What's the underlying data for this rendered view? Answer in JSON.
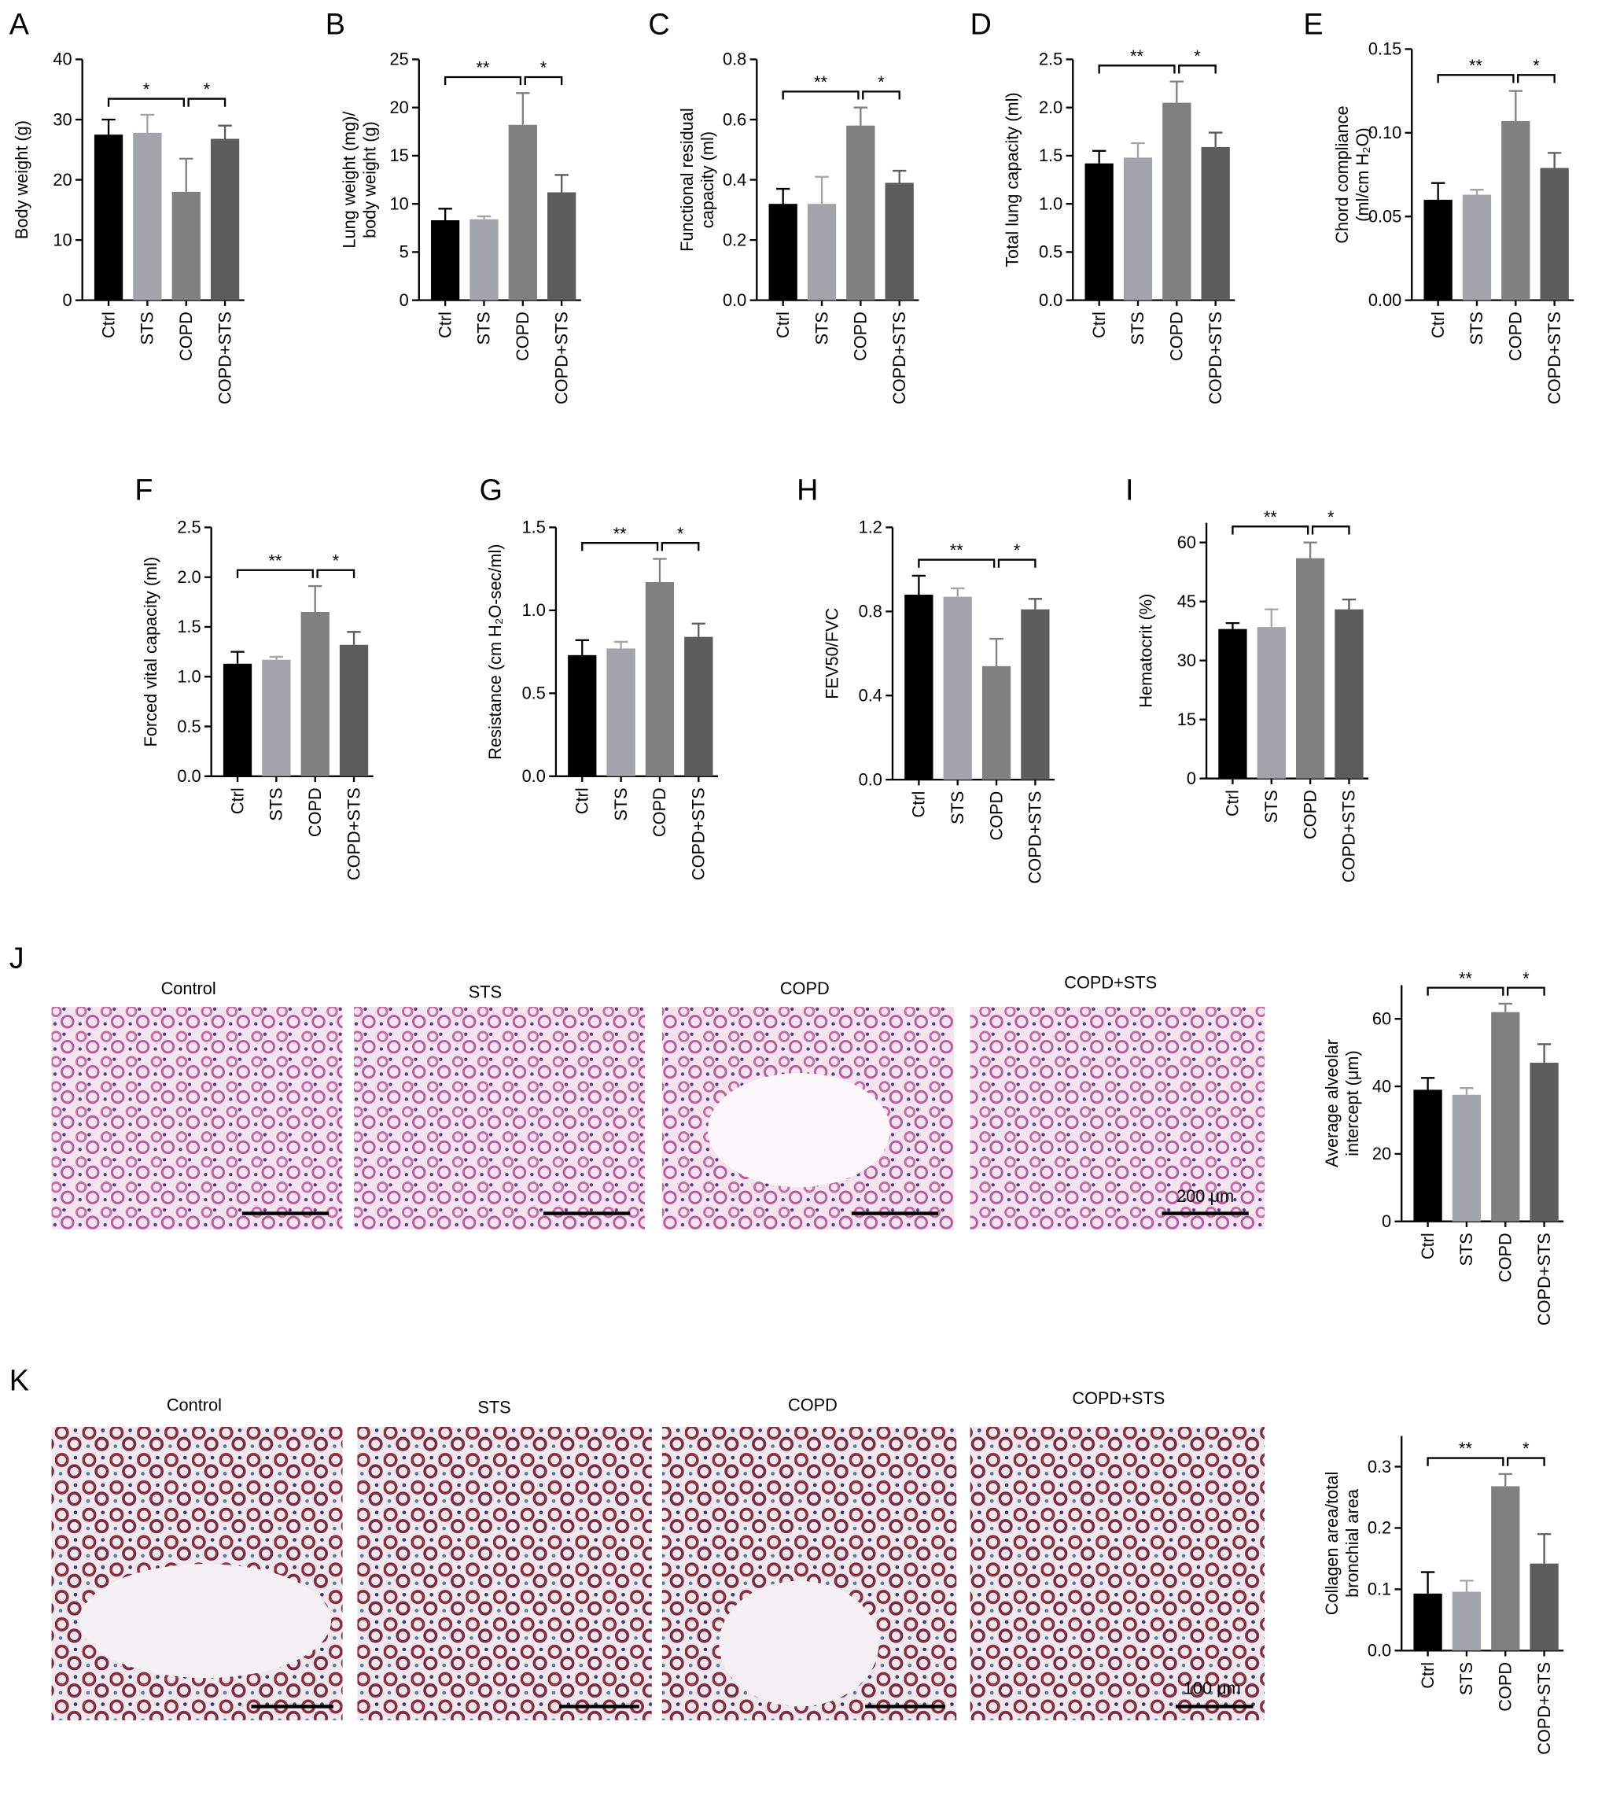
{
  "chart_data": [
    {
      "type": "bar",
      "panel": "A",
      "ylabel": "Body weight (g)",
      "categories": [
        "Ctrl",
        "STS",
        "COPD",
        "COPD+STS"
      ],
      "values": [
        27.5,
        27.8,
        18,
        26.8
      ],
      "errors": [
        2.5,
        3,
        5.5,
        2.2
      ],
      "colors": [
        "#000000",
        "#a3a3ab",
        "#808080",
        "#5c5c5c"
      ],
      "ylim": [
        0,
        40
      ],
      "yticks": [
        0,
        10,
        20,
        30,
        40
      ],
      "brackets": [
        {
          "label": "*",
          "span": [
            "Ctrl",
            "COPD"
          ]
        },
        {
          "label": "*",
          "span": [
            "COPD",
            "COPD+STS"
          ]
        }
      ]
    },
    {
      "type": "bar",
      "panel": "B",
      "ylabel": "Lung weight (mg)/ body weight (g)",
      "categories": [
        "Ctrl",
        "STS",
        "COPD",
        "COPD+STS"
      ],
      "values": [
        8.3,
        8.4,
        18.2,
        11.2
      ],
      "errors": [
        1.2,
        0.3,
        3.3,
        1.8
      ],
      "colors": [
        "#000000",
        "#a3a3ab",
        "#808080",
        "#5c5c5c"
      ],
      "ylim": [
        0,
        25
      ],
      "yticks": [
        0,
        5,
        10,
        15,
        20,
        25
      ],
      "brackets": [
        {
          "label": "**",
          "span": [
            "Ctrl",
            "COPD"
          ]
        },
        {
          "label": "*",
          "span": [
            "COPD",
            "COPD+STS"
          ]
        }
      ]
    },
    {
      "type": "bar",
      "panel": "C",
      "ylabel": "Functional residual capacity (ml)",
      "categories": [
        "Ctrl",
        "STS",
        "COPD",
        "COPD+STS"
      ],
      "values": [
        0.32,
        0.32,
        0.58,
        0.39
      ],
      "errors": [
        0.05,
        0.09,
        0.06,
        0.04
      ],
      "colors": [
        "#000000",
        "#a3a3ab",
        "#808080",
        "#5c5c5c"
      ],
      "ylim": [
        0,
        0.8
      ],
      "yticks": [
        {
          "value": 0,
          "label": "0.0"
        },
        0.2,
        0.4,
        0.6,
        0.8
      ],
      "brackets": [
        {
          "label": "**",
          "span": [
            "Ctrl",
            "COPD"
          ]
        },
        {
          "label": "*",
          "span": [
            "COPD",
            "COPD+STS"
          ]
        }
      ]
    },
    {
      "type": "bar",
      "panel": "D",
      "ylabel": "Total lung capacity (ml)",
      "categories": [
        "Ctrl",
        "STS",
        "COPD",
        "COPD+STS"
      ],
      "values": [
        1.42,
        1.48,
        2.05,
        1.59
      ],
      "errors": [
        0.13,
        0.15,
        0.22,
        0.15
      ],
      "colors": [
        "#000000",
        "#a3a3ab",
        "#808080",
        "#5c5c5c"
      ],
      "ylim": [
        0,
        2.5
      ],
      "yticks": [
        {
          "value": 0,
          "label": "0.0"
        },
        0.5,
        {
          "value": 1,
          "label": "1.0"
        },
        1.5,
        {
          "value": 2,
          "label": "2.0"
        },
        2.5
      ],
      "brackets": [
        {
          "label": "**",
          "span": [
            "Ctrl",
            "COPD"
          ]
        },
        {
          "label": "*",
          "span": [
            "COPD",
            "COPD+STS"
          ]
        }
      ]
    },
    {
      "type": "bar",
      "panel": "E",
      "ylabel": "Chord compliance (ml/cm H₂O)",
      "categories": [
        "Ctrl",
        "STS",
        "COPD",
        "COPD+STS"
      ],
      "values": [
        0.06,
        0.063,
        0.107,
        0.079
      ],
      "errors": [
        0.01,
        0.003,
        0.018,
        0.009
      ],
      "colors": [
        "#000000",
        "#a3a3ab",
        "#808080",
        "#5c5c5c"
      ],
      "ylim": [
        0,
        0.15
      ],
      "yticks": [
        {
          "value": 0,
          "label": "0.00"
        },
        0.05,
        {
          "value": 0.1,
          "label": "0.10"
        },
        0.15
      ],
      "brackets": [
        {
          "label": "**",
          "span": [
            "Ctrl",
            "COPD"
          ]
        },
        {
          "label": "*",
          "span": [
            "COPD",
            "COPD+STS"
          ]
        }
      ]
    },
    {
      "type": "bar",
      "panel": "F",
      "ylabel": "Forced vital capacity (ml)",
      "categories": [
        "Ctrl",
        "STS",
        "COPD",
        "COPD+STS"
      ],
      "values": [
        1.13,
        1.17,
        1.65,
        1.32
      ],
      "errors": [
        0.12,
        0.03,
        0.26,
        0.13
      ],
      "colors": [
        "#000000",
        "#a3a3ab",
        "#808080",
        "#5c5c5c"
      ],
      "ylim": [
        0,
        2.5
      ],
      "yticks": [
        {
          "value": 0,
          "label": "0.0"
        },
        0.5,
        {
          "value": 1,
          "label": "1.0"
        },
        1.5,
        {
          "value": 2,
          "label": "2.0"
        },
        2.5
      ],
      "brackets": [
        {
          "label": "**",
          "span": [
            "Ctrl",
            "COPD"
          ]
        },
        {
          "label": "*",
          "span": [
            "COPD",
            "COPD+STS"
          ]
        }
      ]
    },
    {
      "type": "bar",
      "panel": "G",
      "ylabel": "Resistance (cm H₂O-sec/ml)",
      "categories": [
        "Ctrl",
        "STS",
        "COPD",
        "COPD+STS"
      ],
      "values": [
        0.73,
        0.77,
        1.17,
        0.84
      ],
      "errors": [
        0.09,
        0.04,
        0.14,
        0.08
      ],
      "colors": [
        "#000000",
        "#a3a3ab",
        "#808080",
        "#5c5c5c"
      ],
      "ylim": [
        0,
        1.5
      ],
      "yticks": [
        {
          "value": 0,
          "label": "0.0"
        },
        0.5,
        {
          "value": 1,
          "label": "1.0"
        },
        1.5
      ],
      "brackets": [
        {
          "label": "**",
          "span": [
            "Ctrl",
            "COPD"
          ]
        },
        {
          "label": "*",
          "span": [
            "COPD",
            "COPD+STS"
          ]
        }
      ]
    },
    {
      "type": "bar",
      "panel": "H",
      "ylabel": "FEV50/FVC",
      "categories": [
        "Ctrl",
        "STS",
        "COPD",
        "COPD+STS"
      ],
      "values": [
        0.88,
        0.87,
        0.54,
        0.81
      ],
      "errors": [
        0.09,
        0.04,
        0.13,
        0.05
      ],
      "colors": [
        "#000000",
        "#a3a3ab",
        "#808080",
        "#5c5c5c"
      ],
      "ylim": [
        0,
        1.2
      ],
      "yticks": [
        {
          "value": 0,
          "label": "0.0"
        },
        0.4,
        0.8,
        1.2
      ],
      "brackets": [
        {
          "label": "**",
          "span": [
            "Ctrl",
            "COPD"
          ]
        },
        {
          "label": "*",
          "span": [
            "COPD",
            "COPD+STS"
          ]
        }
      ]
    },
    {
      "type": "bar",
      "panel": "I",
      "ylabel": "Hematocrit (%)",
      "categories": [
        "Ctrl",
        "STS",
        "COPD",
        "COPD+STS"
      ],
      "values": [
        38,
        38.5,
        56,
        43
      ],
      "errors": [
        1.5,
        4.5,
        4,
        2.5
      ],
      "colors": [
        "#000000",
        "#a3a3ab",
        "#808080",
        "#5c5c5c"
      ],
      "ylim": [
        0,
        65
      ],
      "yticks": [
        0,
        15,
        30,
        45,
        60
      ],
      "brackets": [
        {
          "label": "**",
          "span": [
            "Ctrl",
            "COPD"
          ]
        },
        {
          "label": "*",
          "span": [
            "COPD",
            "COPD+STS"
          ]
        }
      ]
    },
    {
      "type": "bar",
      "panel": "J",
      "ylabel": "Average alveolar intercept (μm)",
      "categories": [
        "Ctrl",
        "STS",
        "COPD",
        "COPD+STS"
      ],
      "values": [
        39,
        37.5,
        62,
        47
      ],
      "errors": [
        3.5,
        2,
        2.5,
        5.5
      ],
      "colors": [
        "#000000",
        "#a3a3ab",
        "#808080",
        "#5c5c5c"
      ],
      "ylim": [
        0,
        70
      ],
      "yticks": [
        0,
        20,
        40,
        60
      ],
      "brackets": [
        {
          "label": "**",
          "span": [
            "Ctrl",
            "COPD"
          ]
        },
        {
          "label": "*",
          "span": [
            "COPD",
            "COPD+STS"
          ]
        }
      ]
    },
    {
      "type": "bar",
      "panel": "K",
      "ylabel": "Collagen area/total bronchial area",
      "categories": [
        "Ctrl",
        "STS",
        "COPD",
        "COPD+STS"
      ],
      "values": [
        0.093,
        0.096,
        0.268,
        0.142
      ],
      "errors": [
        0.035,
        0.018,
        0.02,
        0.048
      ],
      "colors": [
        "#000000",
        "#a3a3ab",
        "#808080",
        "#5c5c5c"
      ],
      "ylim": [
        0,
        0.35
      ],
      "yticks": [
        {
          "value": 0,
          "label": "0.0"
        },
        0.1,
        0.2,
        0.3
      ],
      "brackets": [
        {
          "label": "**",
          "span": [
            "Ctrl",
            "COPD"
          ]
        },
        {
          "label": "*",
          "span": [
            "COPD",
            "COPD+STS"
          ]
        }
      ]
    }
  ],
  "micrographs": [
    {
      "labels": [
        "Control",
        "STS",
        "COPD",
        "COPD+STS"
      ],
      "scale": "200 μm"
    },
    {
      "labels": [
        "Control",
        "STS",
        "COPD",
        "COPD+STS"
      ],
      "scale": "100 μm"
    }
  ]
}
